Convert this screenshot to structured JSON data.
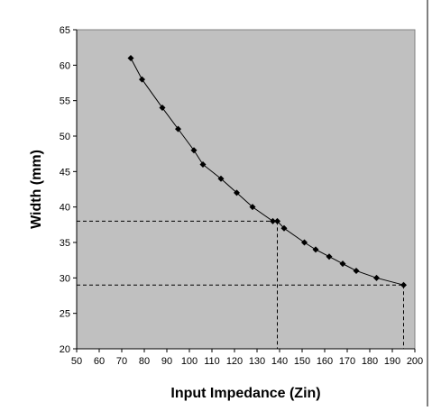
{
  "chart_data": {
    "type": "scatter",
    "title": "",
    "xlabel": "Input Impedance (Zin)",
    "ylabel": "Width (mm)",
    "xlim": [
      50,
      200
    ],
    "ylim": [
      20,
      65
    ],
    "x_ticks": [
      "50",
      "60",
      "70",
      "80",
      "90",
      "100",
      "110",
      "120",
      "130",
      "140",
      "150",
      "160",
      "170",
      "180",
      "190",
      "200"
    ],
    "y_ticks": [
      "20",
      "25",
      "30",
      "35",
      "40",
      "45",
      "50",
      "55",
      "60",
      "65"
    ],
    "grid": false,
    "legend": "none",
    "plot_background": "#c0c0c0",
    "series": [
      {
        "color": "#000000",
        "marker": "diamond",
        "line": true,
        "points": [
          [
            74,
            61
          ],
          [
            79,
            58
          ],
          [
            88,
            54
          ],
          [
            95,
            51
          ],
          [
            102,
            48
          ],
          [
            106,
            46
          ],
          [
            114,
            44
          ],
          [
            121,
            42
          ],
          [
            128,
            40
          ],
          [
            137,
            38
          ],
          [
            139,
            38
          ],
          [
            142,
            37
          ],
          [
            151,
            35
          ],
          [
            156,
            34
          ],
          [
            162,
            33
          ],
          [
            168,
            32
          ],
          [
            174,
            31
          ],
          [
            183,
            30
          ],
          [
            195,
            29
          ]
        ]
      }
    ],
    "reference_lines": [
      {
        "x": 139,
        "y": 38
      },
      {
        "x": 195,
        "y": 29
      }
    ]
  }
}
